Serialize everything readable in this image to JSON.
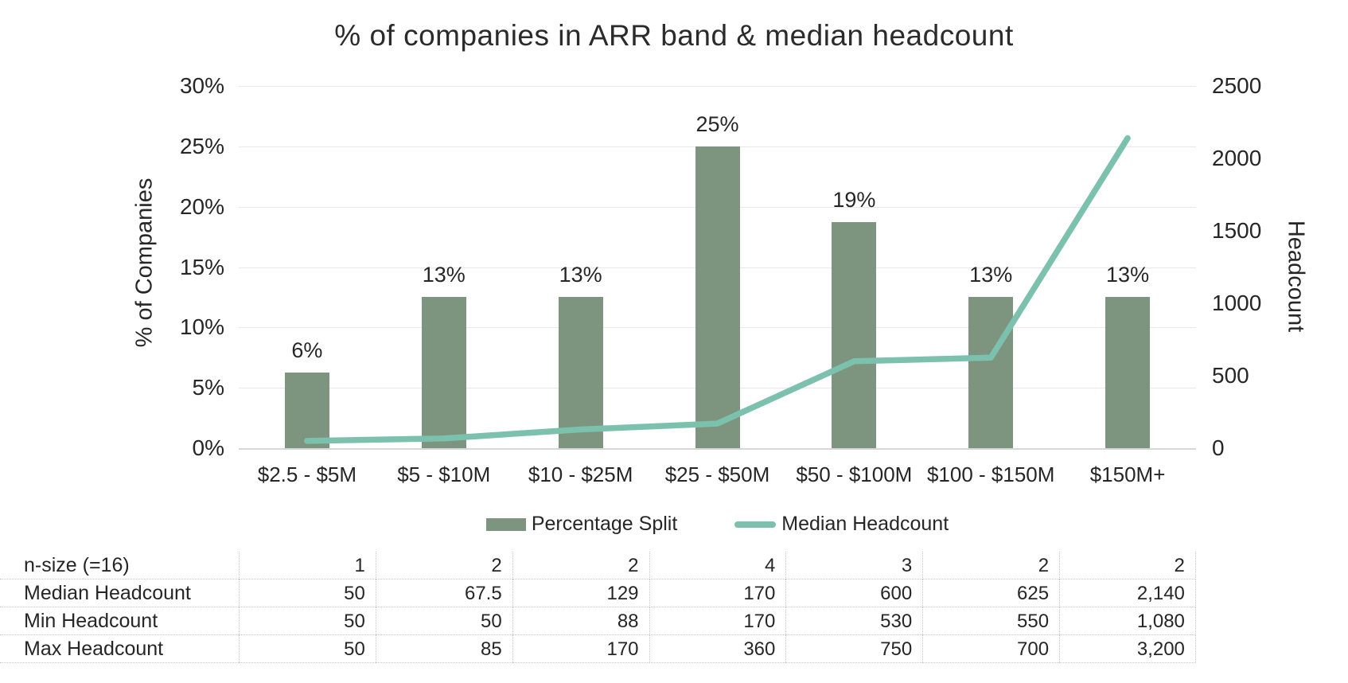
{
  "title": "% of companies in ARR band & median headcount",
  "colors": {
    "bar": "#7d947f",
    "line": "#7cc0ae",
    "grid": "#e8e8e8",
    "axis_line": "#d6d6d6",
    "text": "#262626",
    "table_border": "#c6c6c6"
  },
  "chart_data": {
    "type": "bar",
    "subtype": "combo bar+line, dual axis",
    "title": "% of companies in ARR band & median headcount",
    "categories": [
      "$2.5 - $5M",
      "$5 - $10M",
      "$10 - $25M",
      "$25 - $50M",
      "$50 - $100M",
      "$100 - $150M",
      "$150M+"
    ],
    "series": [
      {
        "name": "Percentage Split",
        "type": "bar",
        "axis": "left",
        "values": [
          6.25,
          12.5,
          12.5,
          25,
          18.75,
          12.5,
          12.5
        ],
        "data_labels": [
          "6%",
          "13%",
          "13%",
          "25%",
          "19%",
          "13%",
          "13%"
        ]
      },
      {
        "name": "Median Headcount",
        "type": "line",
        "axis": "right",
        "values": [
          50,
          67.5,
          129,
          170,
          600,
          625,
          2140
        ]
      }
    ],
    "left_axis": {
      "title": "% of Companies",
      "min": 0,
      "max": 30,
      "ticks": [
        "30%",
        "25%",
        "20%",
        "15%",
        "10%",
        "5%",
        "0%"
      ]
    },
    "right_axis": {
      "title": "Headcount",
      "min": 0,
      "max": 2500,
      "ticks": [
        "2500",
        "2000",
        "1500",
        "1000",
        "500",
        "0"
      ]
    },
    "legend": [
      "Percentage Split",
      "Median Headcount"
    ],
    "legend_position": "bottom",
    "grid": true
  },
  "table": {
    "rows": [
      {
        "label": "n-size (=16)",
        "values": [
          "1",
          "2",
          "2",
          "4",
          "3",
          "2",
          "2"
        ]
      },
      {
        "label": "Median Headcount",
        "values": [
          "50",
          "67.5",
          "129",
          "170",
          "600",
          "625",
          "2,140"
        ]
      },
      {
        "label": "Min Headcount",
        "values": [
          "50",
          "50",
          "88",
          "170",
          "530",
          "550",
          "1,080"
        ]
      },
      {
        "label": "Max Headcount",
        "values": [
          "50",
          "85",
          "170",
          "360",
          "750",
          "700",
          "3,200"
        ]
      }
    ]
  }
}
